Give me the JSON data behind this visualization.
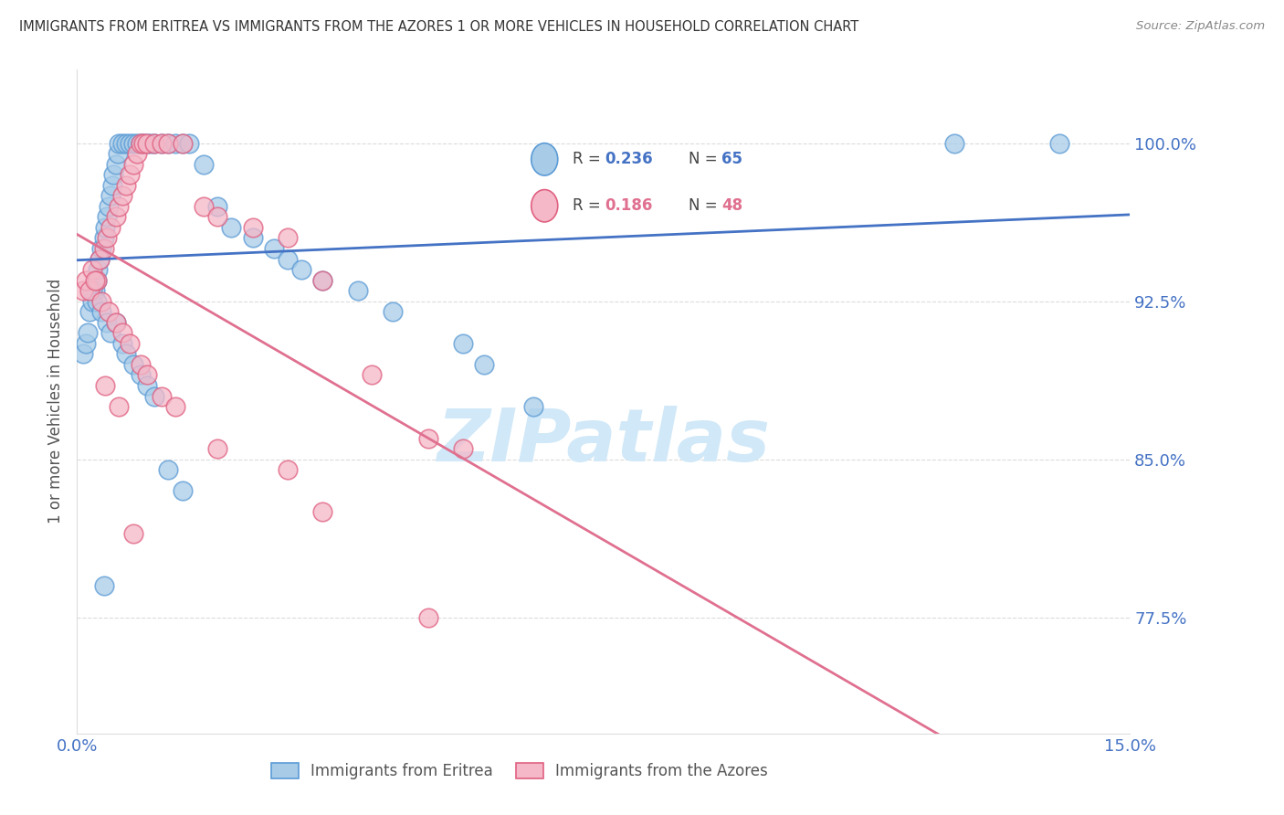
{
  "title": "IMMIGRANTS FROM ERITREA VS IMMIGRANTS FROM THE AZORES 1 OR MORE VEHICLES IN HOUSEHOLD CORRELATION CHART",
  "source": "Source: ZipAtlas.com",
  "ylabel": "1 or more Vehicles in Household",
  "yticks": [
    77.5,
    85.0,
    92.5,
    100.0
  ],
  "ytick_labels": [
    "77.5%",
    "85.0%",
    "92.5%",
    "100.0%"
  ],
  "xmin": 0.0,
  "xmax": 15.0,
  "ymin": 72.0,
  "ymax": 103.5,
  "legend_blue_r": "0.236",
  "legend_blue_n": "65",
  "legend_pink_r": "0.186",
  "legend_pink_n": "48",
  "legend_label_blue": "Immigrants from Eritrea",
  "legend_label_pink": "Immigrants from the Azores",
  "color_blue_face": "#a8cce8",
  "color_blue_edge": "#5b9bd5",
  "color_pink_face": "#f4b8c8",
  "color_pink_edge": "#e06080",
  "color_blue_line": "#4472c4",
  "color_pink_line": "#e07090",
  "color_axis_text": "#4472c4",
  "color_pink_text": "#e07090",
  "color_title": "#333333",
  "color_source": "#888888",
  "color_grid": "#cccccc",
  "watermark_text": "ZIPatlas",
  "watermark_color": "#d0e8f8",
  "blue_x": [
    0.08,
    0.12,
    0.15,
    0.18,
    0.22,
    0.25,
    0.28,
    0.3,
    0.32,
    0.35,
    0.38,
    0.4,
    0.42,
    0.45,
    0.48,
    0.5,
    0.52,
    0.55,
    0.58,
    0.6,
    0.65,
    0.7,
    0.75,
    0.8,
    0.85,
    0.9,
    0.95,
    1.0,
    1.05,
    1.1,
    1.2,
    1.3,
    1.4,
    1.5,
    1.6,
    1.8,
    2.0,
    2.2,
    2.5,
    2.8,
    3.0,
    3.2,
    3.5,
    4.0,
    4.5,
    5.5,
    5.8,
    6.5,
    0.22,
    0.28,
    0.35,
    0.42,
    0.48,
    0.55,
    0.65,
    0.7,
    0.8,
    0.9,
    1.0,
    1.1,
    1.3,
    1.5,
    12.5,
    14.0,
    0.38
  ],
  "blue_y": [
    90.0,
    90.5,
    91.0,
    92.0,
    92.5,
    93.0,
    93.5,
    94.0,
    94.5,
    95.0,
    95.5,
    96.0,
    96.5,
    97.0,
    97.5,
    98.0,
    98.5,
    99.0,
    99.5,
    100.0,
    100.0,
    100.0,
    100.0,
    100.0,
    100.0,
    100.0,
    100.0,
    100.0,
    100.0,
    100.0,
    100.0,
    100.0,
    100.0,
    100.0,
    100.0,
    99.0,
    97.0,
    96.0,
    95.5,
    95.0,
    94.5,
    94.0,
    93.5,
    93.0,
    92.0,
    90.5,
    89.5,
    87.5,
    93.0,
    92.5,
    92.0,
    91.5,
    91.0,
    91.5,
    90.5,
    90.0,
    89.5,
    89.0,
    88.5,
    88.0,
    84.5,
    83.5,
    100.0,
    100.0,
    79.0
  ],
  "pink_x": [
    0.08,
    0.12,
    0.18,
    0.22,
    0.28,
    0.32,
    0.38,
    0.42,
    0.48,
    0.55,
    0.6,
    0.65,
    0.7,
    0.75,
    0.8,
    0.85,
    0.9,
    0.95,
    1.0,
    1.1,
    1.2,
    1.3,
    1.5,
    1.8,
    2.0,
    2.5,
    3.0,
    3.5,
    4.2,
    5.0,
    5.5,
    0.25,
    0.35,
    0.45,
    0.55,
    0.65,
    0.75,
    0.9,
    1.0,
    1.2,
    1.4,
    2.0,
    3.0,
    3.5,
    5.0,
    0.4,
    0.6,
    0.8
  ],
  "pink_y": [
    93.0,
    93.5,
    93.0,
    94.0,
    93.5,
    94.5,
    95.0,
    95.5,
    96.0,
    96.5,
    97.0,
    97.5,
    98.0,
    98.5,
    99.0,
    99.5,
    100.0,
    100.0,
    100.0,
    100.0,
    100.0,
    100.0,
    100.0,
    97.0,
    96.5,
    96.0,
    95.5,
    93.5,
    89.0,
    86.0,
    85.5,
    93.5,
    92.5,
    92.0,
    91.5,
    91.0,
    90.5,
    89.5,
    89.0,
    88.0,
    87.5,
    85.5,
    84.5,
    82.5,
    77.5,
    88.5,
    87.5,
    81.5
  ]
}
